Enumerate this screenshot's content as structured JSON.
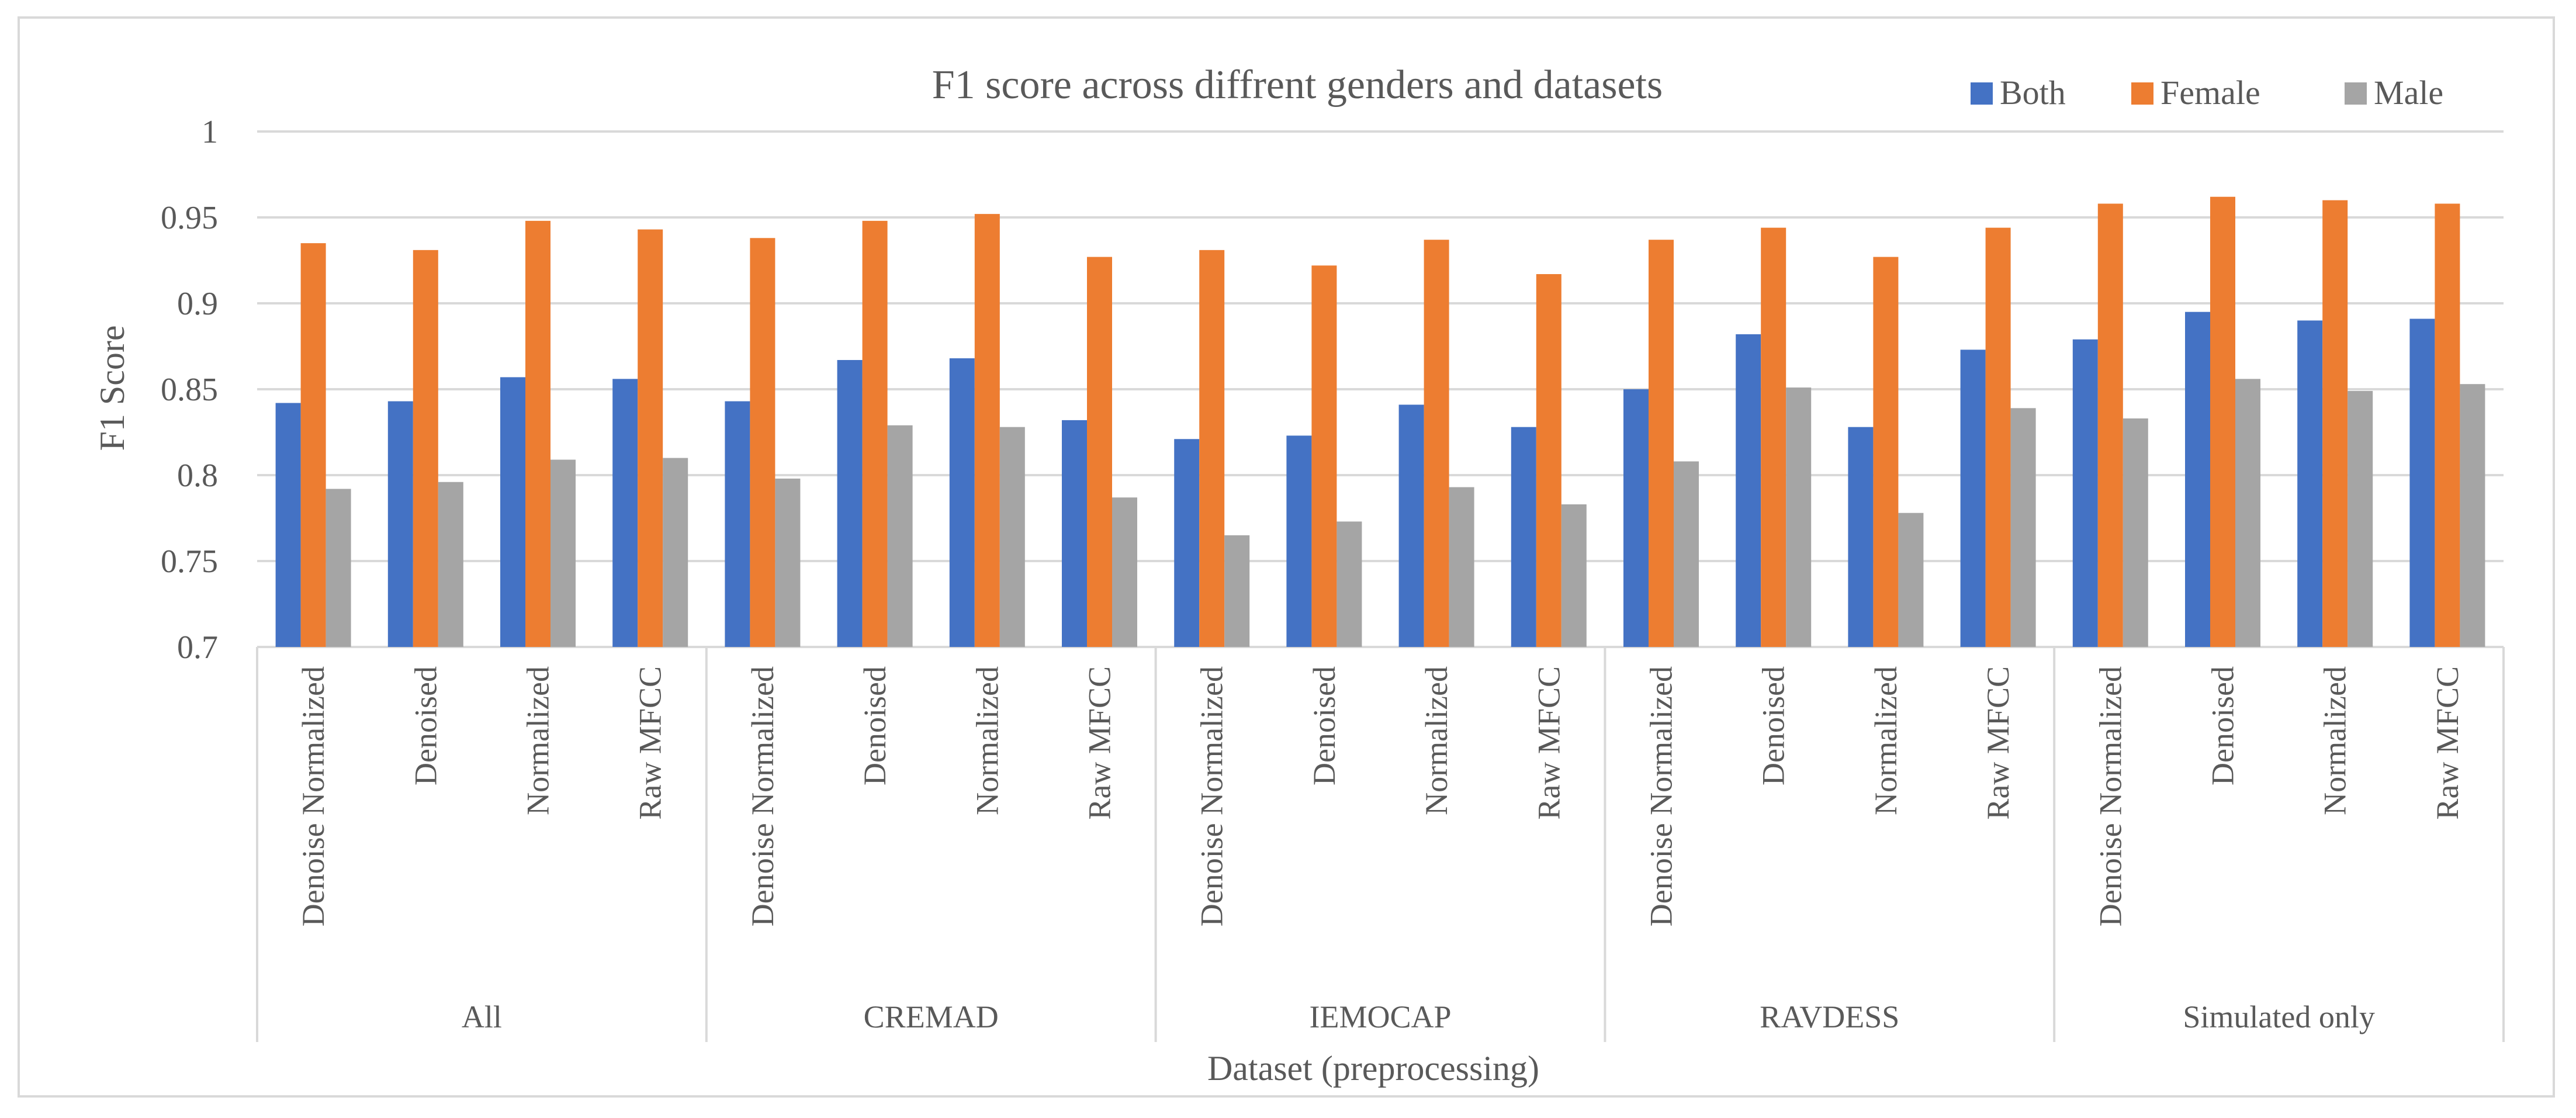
{
  "chart_data": {
    "type": "bar",
    "title": "F1 score across diffrent genders and datasets",
    "xlabel": "Dataset (preprocessing)",
    "ylabel": "F1 Score",
    "ylim": [
      0.7,
      1
    ],
    "yticks": [
      "0.7",
      "0.75",
      "0.8",
      "0.85",
      "0.9",
      "0.95",
      "1"
    ],
    "grid": true,
    "legend_position": "top-right",
    "groups": [
      "All",
      "CREMAD",
      "IEMOCAP",
      "RAVDESS",
      "Simulated only"
    ],
    "subcategories": [
      "Denoise Normalized",
      "Denoised",
      "Normalized",
      "Raw MFCC"
    ],
    "colors": {
      "Both": "#4472c4",
      "Female": "#ed7d31",
      "Male": "#a5a5a5"
    },
    "series": [
      {
        "name": "Both",
        "values": [
          0.842,
          0.843,
          0.857,
          0.856,
          0.843,
          0.867,
          0.868,
          0.832,
          0.821,
          0.823,
          0.841,
          0.828,
          0.85,
          0.882,
          0.828,
          0.873,
          0.879,
          0.895,
          0.89,
          0.891
        ]
      },
      {
        "name": "Female",
        "values": [
          0.935,
          0.931,
          0.948,
          0.943,
          0.938,
          0.948,
          0.952,
          0.927,
          0.931,
          0.922,
          0.937,
          0.917,
          0.937,
          0.944,
          0.927,
          0.944,
          0.958,
          0.962,
          0.96,
          0.958
        ]
      },
      {
        "name": "Male",
        "values": [
          0.792,
          0.796,
          0.809,
          0.81,
          0.798,
          0.829,
          0.828,
          0.787,
          0.765,
          0.773,
          0.793,
          0.783,
          0.808,
          0.851,
          0.778,
          0.839,
          0.833,
          0.856,
          0.849,
          0.853
        ]
      }
    ]
  }
}
